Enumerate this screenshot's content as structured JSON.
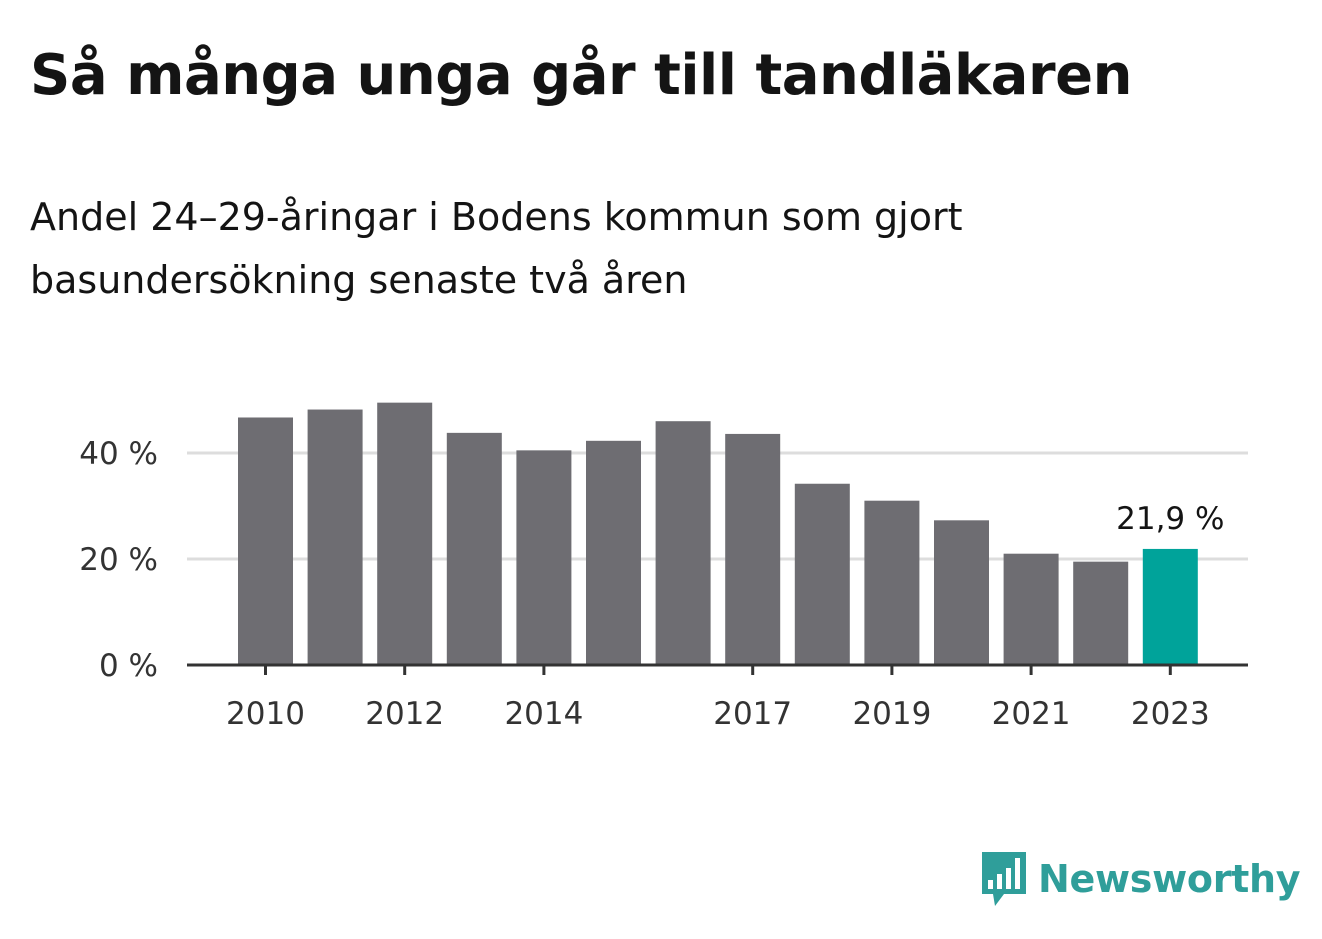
{
  "header": {
    "title": "Så många unga går till tandläkaren",
    "subtitle": "Andel 24–29-åringar i Bodens kommun som gjort basundersökning senaste två åren"
  },
  "chart_data": {
    "type": "bar",
    "title": "Så många unga går till tandläkaren",
    "subtitle": "Andel 24–29-åringar i Bodens kommun som gjort basundersökning senaste två åren",
    "x": [
      2010,
      2011,
      2012,
      2013,
      2014,
      2015,
      2016,
      2017,
      2018,
      2019,
      2020,
      2021,
      2022,
      2023
    ],
    "values": [
      46.7,
      48.2,
      49.5,
      43.8,
      40.5,
      42.3,
      46.0,
      43.6,
      34.2,
      31.0,
      27.3,
      21.0,
      19.5,
      21.9
    ],
    "unit": "%",
    "xticks": [
      "2010",
      "2012",
      "2014",
      "2017",
      "2019",
      "2021",
      "2023"
    ],
    "yticks": [
      "0 %",
      "20 %",
      "40 %"
    ],
    "ytick_values": [
      0,
      20,
      40
    ],
    "ylim": [
      0,
      50
    ],
    "grid": true,
    "highlight_index": 13,
    "highlight_label": "21,9 %",
    "colors": {
      "bar": "#6e6d72",
      "highlight": "#00a39a",
      "grid": "#dddddd",
      "axis": "#333333"
    }
  },
  "logo": {
    "text": "Newsworthy",
    "icon": "newsworthy-chart-bubble-icon",
    "color": "#2f9e9a"
  }
}
